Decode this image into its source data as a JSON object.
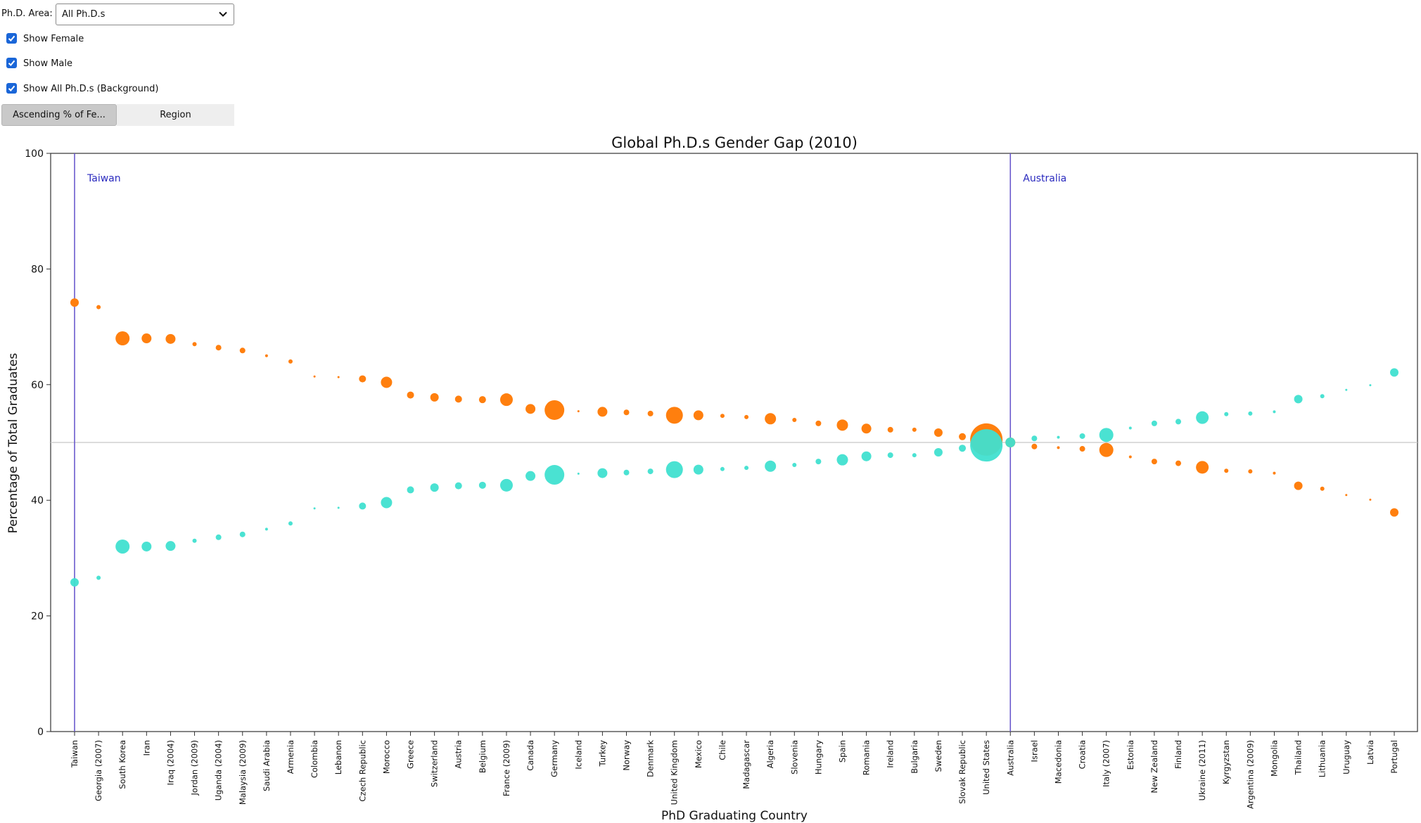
{
  "controls": {
    "area_label": "Ph.D. Area:",
    "area_value": "All Ph.D.s",
    "show_female_label": "Show Female",
    "show_female_checked": true,
    "show_male_label": "Show Male",
    "show_male_checked": true,
    "show_all_label": "Show All Ph.D.s (Background)",
    "show_all_checked": true,
    "sort_tabs": [
      "Ascending % of Fe...",
      "Region"
    ],
    "active_tab": 0
  },
  "colors": {
    "female": "#ff7f0e",
    "male": "#40e0d0",
    "marker_line": "#6a5acd",
    "reference_line": "#c8c8c8"
  },
  "chart_data": {
    "type": "scatter",
    "title": "Global Ph.D.s Gender Gap (2010)",
    "xlabel": "PhD Graduating Country",
    "ylabel": "Percentage of Total Graduates",
    "ylim": [
      0,
      100
    ],
    "yticks": [
      0,
      20,
      40,
      60,
      80,
      100
    ],
    "reference_y": 50,
    "grid": false,
    "categories": [
      "Taiwan",
      "Georgia (2007)",
      "South Korea",
      "Iran",
      "Iraq (2004)",
      "Jordan (2009)",
      "Uganda (2004)",
      "Malaysia (2009)",
      "Saudi Arabia",
      "Armenia",
      "Colombia",
      "Lebanon",
      "Czech Republic",
      "Morocco",
      "Greece",
      "Switzerland",
      "Austria",
      "Belgium",
      "France (2009)",
      "Canada",
      "Germany",
      "Iceland",
      "Turkey",
      "Norway",
      "Denmark",
      "United Kingdom",
      "Mexico",
      "Chile",
      "Madagascar",
      "Algeria",
      "Slovenia",
      "Hungary",
      "Spain",
      "Romania",
      "Ireland",
      "Bulgaria",
      "Sweden",
      "Slovak Republic",
      "United States",
      "Australia",
      "Israel",
      "Macedonia",
      "Croatia",
      "Italy (2007)",
      "Estonia",
      "New Zealand",
      "Finland",
      "Ukraine (2011)",
      "Kyrgyzstan",
      "Argentina (2009)",
      "Mongolia",
      "Thailand",
      "Lithuania",
      "Uruguay",
      "Latvia",
      "Portugal"
    ],
    "series": [
      {
        "name": "Female",
        "values": [
          74.2,
          73.4,
          68.0,
          68.0,
          67.9,
          67.0,
          66.4,
          65.9,
          65.0,
          64.0,
          61.4,
          61.3,
          61.0,
          60.4,
          58.2,
          57.8,
          57.5,
          57.4,
          57.4,
          55.8,
          55.6,
          55.4,
          55.3,
          55.2,
          55.0,
          54.7,
          54.7,
          54.6,
          54.4,
          54.1,
          53.9,
          53.3,
          53.0,
          52.4,
          52.2,
          52.2,
          51.7,
          51.0,
          50.5,
          50.0,
          49.3,
          49.1,
          48.9,
          48.7,
          47.5,
          46.7,
          46.4,
          45.7,
          45.1,
          45.0,
          44.7,
          42.5,
          42.0,
          40.9,
          40.1,
          37.9
        ]
      },
      {
        "name": "Male",
        "values": [
          25.8,
          26.6,
          32.0,
          32.0,
          32.1,
          33.0,
          33.6,
          34.1,
          35.0,
          36.0,
          38.6,
          38.7,
          39.0,
          39.6,
          41.8,
          42.2,
          42.5,
          42.6,
          42.6,
          44.2,
          44.4,
          44.6,
          44.7,
          44.8,
          45.0,
          45.3,
          45.3,
          45.4,
          45.6,
          45.9,
          46.1,
          46.7,
          47.0,
          47.6,
          47.8,
          47.8,
          48.3,
          49.0,
          49.5,
          50.0,
          50.7,
          50.9,
          51.1,
          51.3,
          52.5,
          53.3,
          53.6,
          54.3,
          54.9,
          55.0,
          55.3,
          57.5,
          58.0,
          59.1,
          59.9,
          62.1
        ]
      }
    ],
    "marker_sizes": [
      6,
      3,
      10,
      7,
      7,
      3,
      4,
      4,
      2,
      3,
      1.5,
      1.5,
      5,
      8,
      5,
      6,
      5,
      5,
      9,
      7,
      14,
      1.5,
      7,
      4,
      4,
      12,
      7,
      3,
      3,
      8,
      3,
      4,
      8,
      7,
      4,
      3,
      6,
      5,
      23,
      7,
      4,
      2,
      4,
      10,
      2,
      4,
      4,
      9,
      3,
      3,
      2,
      6,
      3,
      1.5,
      1.5,
      6
    ],
    "annotations": [
      {
        "category": "Taiwan",
        "label": "Taiwan"
      },
      {
        "category": "Australia",
        "label": "Australia"
      }
    ]
  }
}
